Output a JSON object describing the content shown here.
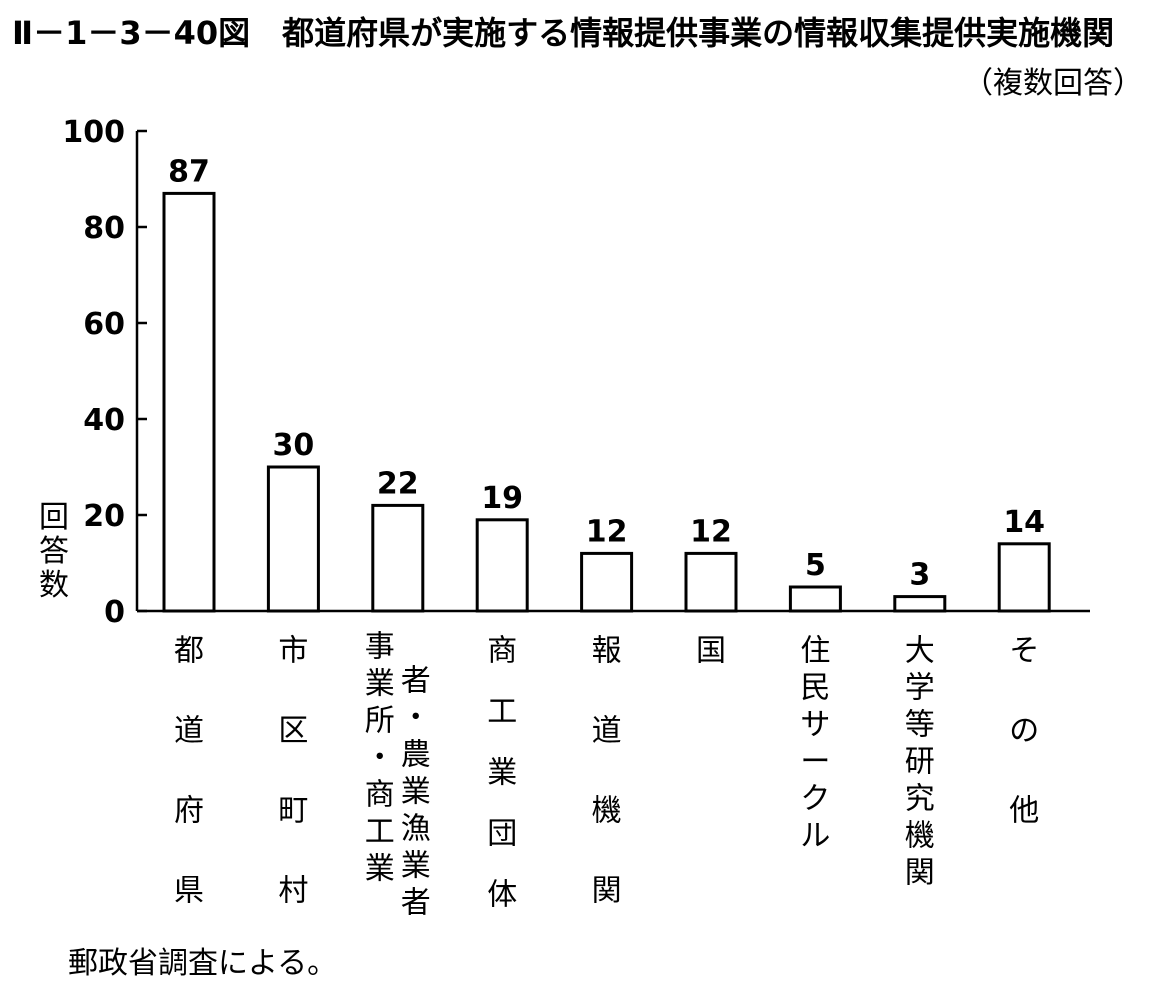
{
  "title": "Ⅱ－1－3－40図　都道府県が実施する情報提供事業の情報収集提供実施機関",
  "subtitle": "（複数回答）",
  "source": "郵政省調査による。",
  "chart_data": {
    "type": "bar",
    "categories": [
      "都道府県",
      "市区町村",
      "事業所・商工業者・農業漁業者",
      "商工業団体",
      "報道機関",
      "国",
      "住民サークル",
      "大学等研究機関",
      "その他"
    ],
    "category_columns": [
      [
        [
          "都",
          "道",
          "府",
          "県"
        ]
      ],
      [
        [
          "市",
          "区",
          "町",
          "村"
        ]
      ],
      [
        [
          "事",
          "業",
          "所",
          "・",
          "商",
          "工",
          "業"
        ],
        [
          "者",
          "・",
          "農",
          "業",
          "漁",
          "業",
          "者"
        ]
      ],
      [
        [
          "商",
          "工",
          "業",
          "団",
          "体"
        ]
      ],
      [
        [
          "報",
          "道",
          "機",
          "関"
        ]
      ],
      [
        [
          "国"
        ]
      ],
      [
        [
          "住",
          "民",
          "サ",
          "ー",
          "ク",
          "ル"
        ]
      ],
      [
        [
          "大",
          "学",
          "等",
          "研",
          "究",
          "機",
          "関"
        ]
      ],
      [
        [
          "そ",
          "の",
          "他"
        ]
      ]
    ],
    "values": [
      87,
      30,
      22,
      19,
      12,
      12,
      5,
      3,
      14
    ],
    "ylabel": "回答数",
    "xlabel": "",
    "ylim": [
      0,
      100
    ],
    "yticks": [
      0,
      20,
      40,
      60,
      80,
      100
    ],
    "grid": false,
    "bar_fill": "#ffffff",
    "bar_stroke": "#000000"
  }
}
